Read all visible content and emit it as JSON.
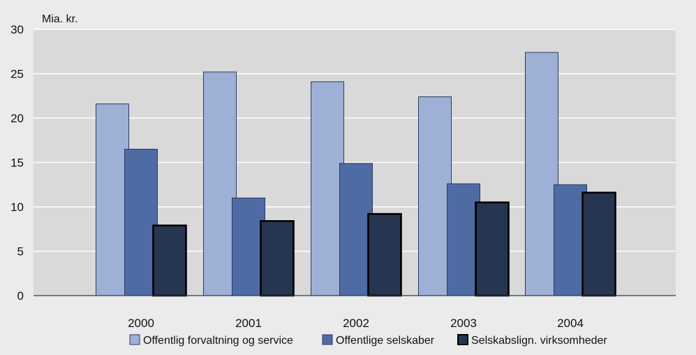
{
  "chart_data": {
    "type": "bar",
    "unit_label": "Mia. kr.",
    "categories": [
      "2000",
      "2001",
      "2002",
      "2003",
      "2004"
    ],
    "series": [
      {
        "name": "Offentlig forvaltning og service",
        "values": [
          21.6,
          25.2,
          24.1,
          22.4,
          27.4
        ],
        "color": "#9eb0d5"
      },
      {
        "name": "Offentlige selskaber",
        "values": [
          16.5,
          11.0,
          14.9,
          12.6,
          12.5
        ],
        "color": "#4f6ba3"
      },
      {
        "name": "Selskabslign. virksomheder",
        "values": [
          7.9,
          8.4,
          9.2,
          10.5,
          11.6
        ],
        "color": "#263550"
      }
    ],
    "ylim": [
      0,
      30
    ],
    "yticks": [
      "0",
      "5",
      "10",
      "15",
      "20",
      "25",
      "30"
    ],
    "grid": true,
    "legend_position": "bottom",
    "plot_background": "#d9d9d9",
    "page_background": "#ebebeb"
  }
}
